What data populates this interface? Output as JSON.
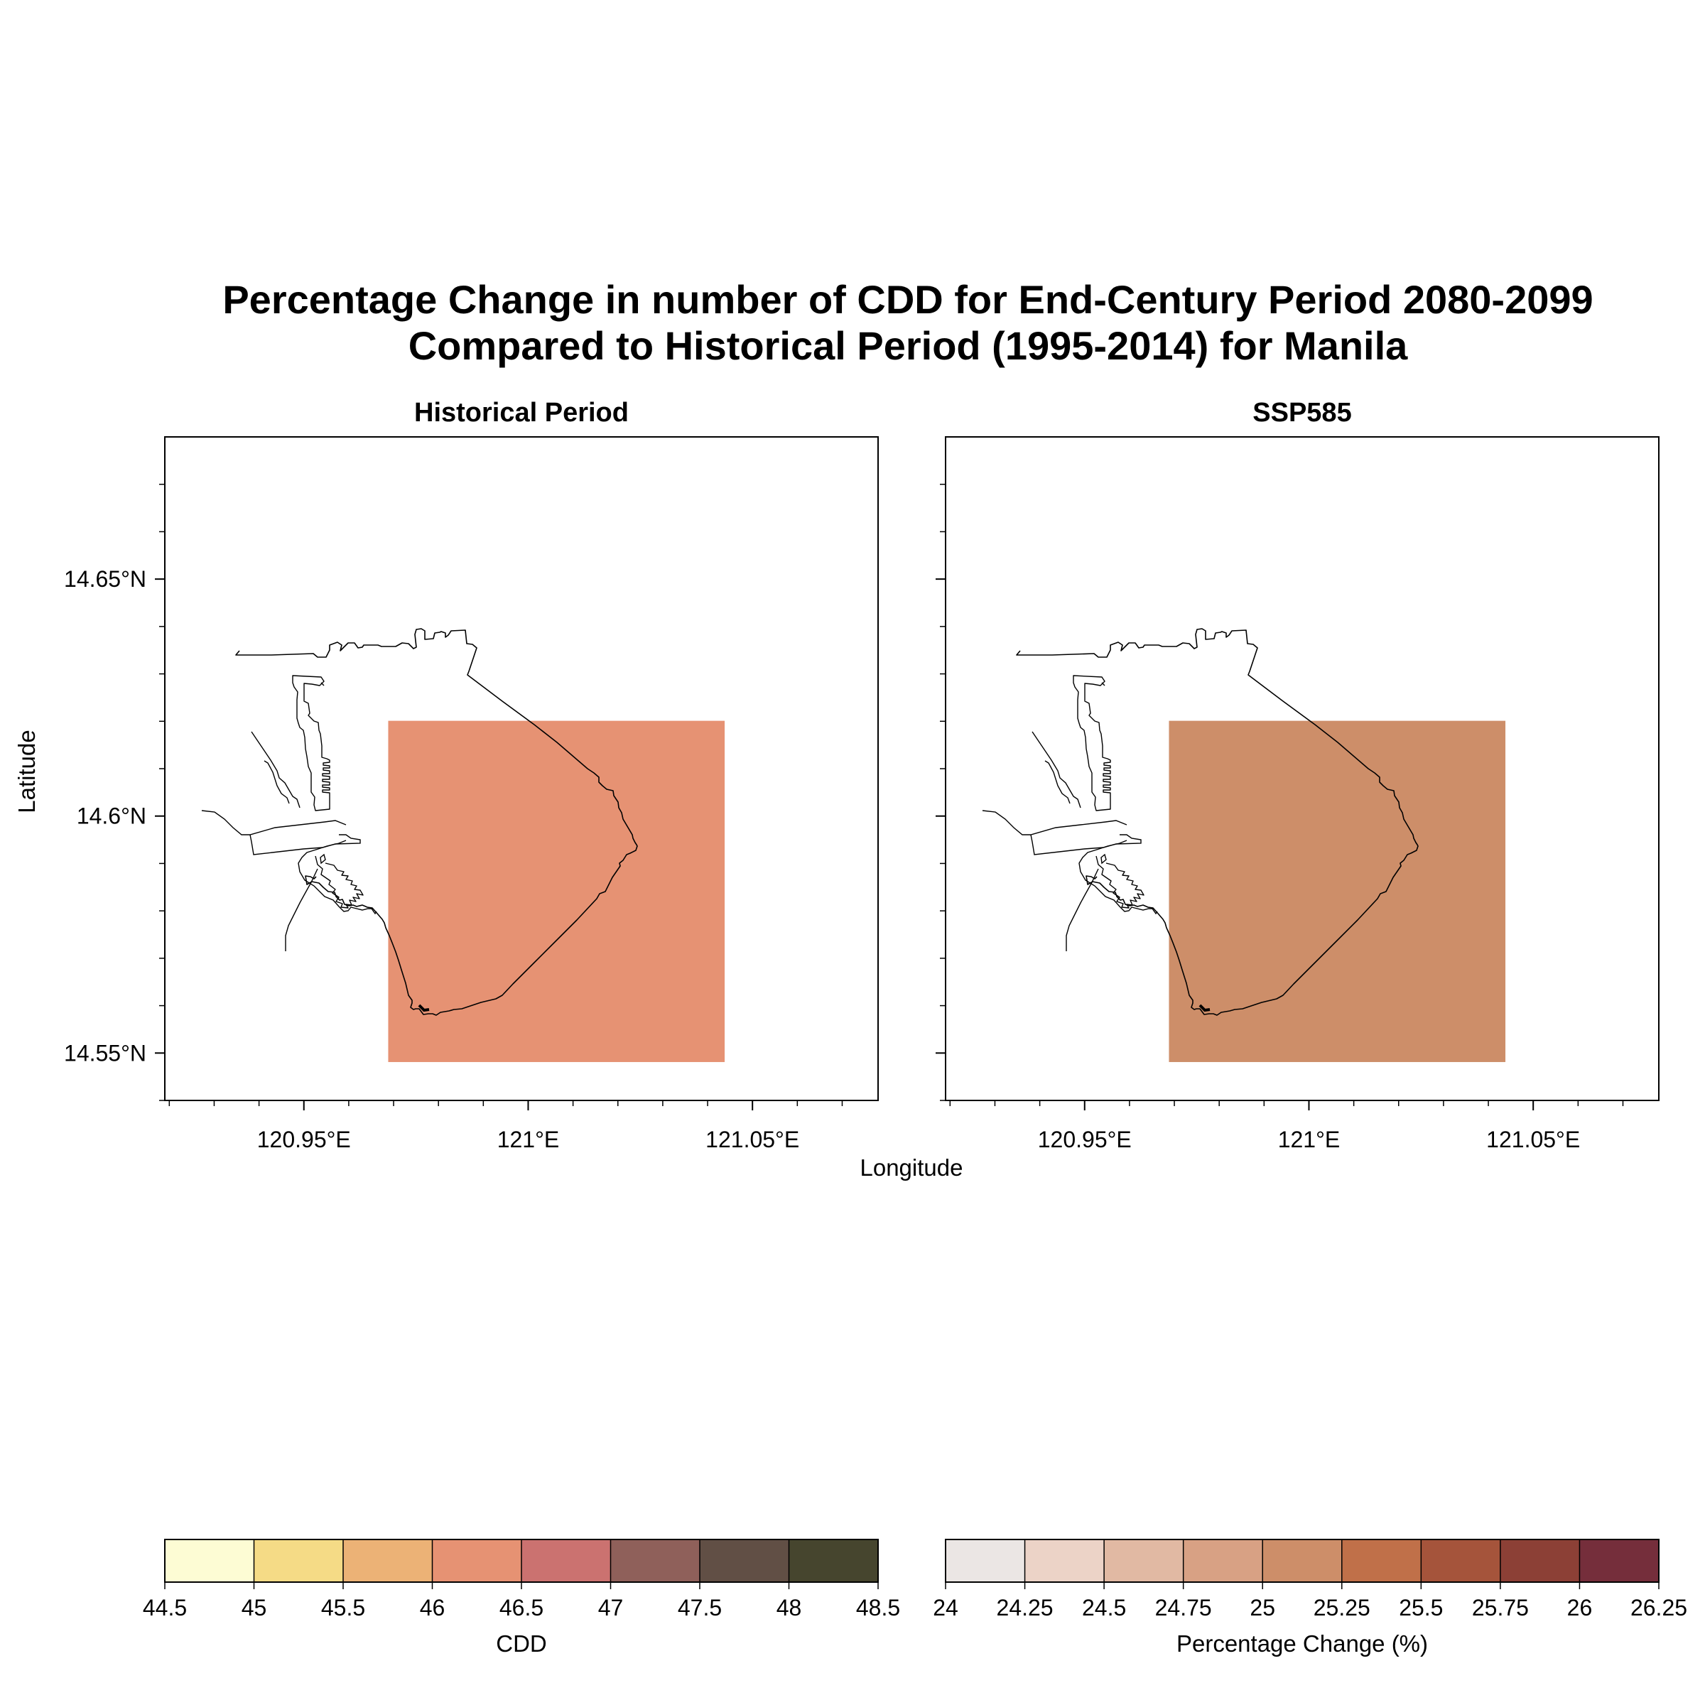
{
  "chart_data": {
    "type": "heatmap",
    "title_lines": [
      "Percentage Change in number of CDD for End-Century Period 2080-2099",
      "Compared to Historical Period (1995-2014) for Manila"
    ],
    "xlabel": "Longitude",
    "ylabel": "Latitude",
    "xlim": [
      120.919,
      121.078
    ],
    "ylim": [
      14.54,
      14.68
    ],
    "x_ticks": [
      120.95,
      121.0,
      121.05
    ],
    "x_tick_labels": [
      "120.95°E",
      "121°E",
      "121.05°E"
    ],
    "y_ticks": [
      14.55,
      14.6,
      14.65
    ],
    "y_tick_labels": [
      "14.55°N",
      "14.6°N",
      "14.65°N"
    ],
    "grid": false,
    "panels": [
      {
        "title": "Historical Period",
        "cell": {
          "lon": [
            120.9688,
            121.0438
          ],
          "lat": [
            14.5481,
            14.6201
          ],
          "value": 46.2,
          "color": "#e69273"
        },
        "colorbar": {
          "label": "CDD",
          "bounds": [
            44.5,
            45,
            45.5,
            46,
            46.5,
            47,
            47.5,
            48,
            48.5
          ],
          "tick_labels": [
            "44.5",
            "45",
            "45.5",
            "46",
            "46.5",
            "47",
            "47.5",
            "48",
            "48.5"
          ],
          "colors": [
            "#fdfcd4",
            "#f5db86",
            "#ecb276",
            "#e69273",
            "#cb7270",
            "#8f605a",
            "#614f45",
            "#46452e"
          ]
        }
      },
      {
        "title": "SSP585",
        "cell": {
          "lon": [
            120.9688,
            121.0438
          ],
          "lat": [
            14.5481,
            14.6201
          ],
          "value": 25.1,
          "color": "#cd8e69"
        },
        "colorbar": {
          "label": "Percentage Change (%)",
          "bounds": [
            24,
            24.25,
            24.5,
            24.75,
            25,
            25.25,
            25.5,
            25.75,
            26,
            26.25
          ],
          "tick_labels": [
            "24",
            "24.25",
            "24.5",
            "24.75",
            "25",
            "25.25",
            "25.5",
            "25.75",
            "26",
            "26.25"
          ],
          "colors": [
            "#ebe6e4",
            "#ecd3c7",
            "#e1b9a3",
            "#d8a184",
            "#cd8e69",
            "#c07049",
            "#a5543b",
            "#8c4036",
            "#752e3b"
          ]
        }
      }
    ]
  }
}
